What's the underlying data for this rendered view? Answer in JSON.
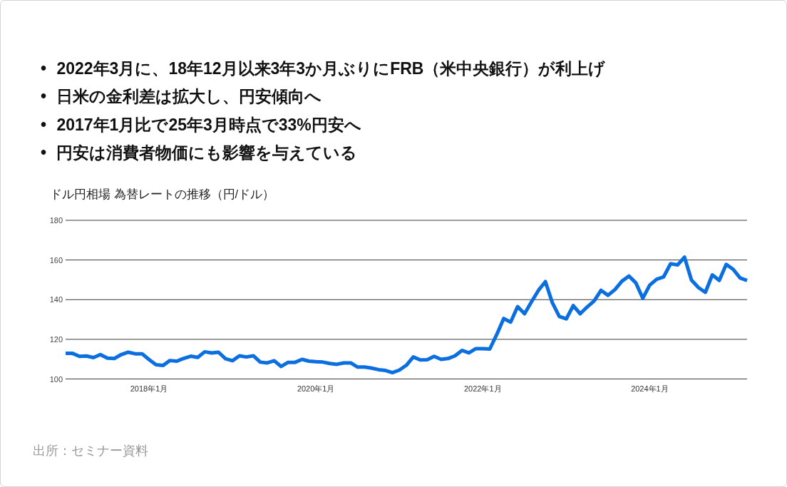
{
  "chart_data": {
    "type": "line",
    "title": "ドル円相場 為替レートの推移（円/ドル）",
    "annotations": [
      "• 2022年3月に、18年12月以来3年3か月ぶりにFRB（米中央銀行）が利上げ",
      "• 日米の金利差は拡大し、円安傾向へ",
      "• 2017年1月比で25年3月時点で33%円安へ",
      "• 円安は消費者物価にも影響を与えている",
      "出所：セミナー資料"
    ],
    "x": [
      "2017-01",
      "2017-02",
      "2017-03",
      "2017-04",
      "2017-05",
      "2017-06",
      "2017-07",
      "2017-08",
      "2017-09",
      "2017-10",
      "2017-11",
      "2017-12",
      "2018-01",
      "2018-02",
      "2018-03",
      "2018-04",
      "2018-05",
      "2018-06",
      "2018-07",
      "2018-08",
      "2018-09",
      "2018-10",
      "2018-11",
      "2018-12",
      "2019-01",
      "2019-02",
      "2019-03",
      "2019-04",
      "2019-05",
      "2019-06",
      "2019-07",
      "2019-08",
      "2019-09",
      "2019-10",
      "2019-11",
      "2019-12",
      "2020-01",
      "2020-02",
      "2020-03",
      "2020-04",
      "2020-05",
      "2020-06",
      "2020-07",
      "2020-08",
      "2020-09",
      "2020-10",
      "2020-11",
      "2020-12",
      "2021-01",
      "2021-02",
      "2021-03",
      "2021-04",
      "2021-05",
      "2021-06",
      "2021-07",
      "2021-08",
      "2021-09",
      "2021-10",
      "2021-11",
      "2021-12",
      "2022-01",
      "2022-02",
      "2022-03",
      "2022-04",
      "2022-05",
      "2022-06",
      "2022-07",
      "2022-08",
      "2022-09",
      "2022-10",
      "2022-11",
      "2022-12",
      "2023-01",
      "2023-02",
      "2023-03",
      "2023-04",
      "2023-05",
      "2023-06",
      "2023-07",
      "2023-08",
      "2023-09",
      "2023-10",
      "2023-11",
      "2023-12",
      "2024-01",
      "2024-02",
      "2024-03",
      "2024-04",
      "2024-05",
      "2024-06",
      "2024-07",
      "2024-08",
      "2024-09",
      "2024-10",
      "2024-11",
      "2024-12",
      "2025-01",
      "2025-02",
      "2025-03"
    ],
    "series": [
      {
        "color": "#0b6fe0",
        "values": [
          112.9,
          112.9,
          111.4,
          111.6,
          110.8,
          112.3,
          110.5,
          110.3,
          112.3,
          113.5,
          112.7,
          112.7,
          109.8,
          107.2,
          106.8,
          109.3,
          109.0,
          110.4,
          111.5,
          110.9,
          113.7,
          113.1,
          113.5,
          110.2,
          109.2,
          111.7,
          111.1,
          111.7,
          108.5,
          108.1,
          109.2,
          106.3,
          108.4,
          108.4,
          109.9,
          109.0,
          108.7,
          108.5,
          107.8,
          107.4,
          108.1,
          108.1,
          106.0,
          106.0,
          105.5,
          104.7,
          104.3,
          103.2,
          104.5,
          106.9,
          111.1,
          109.6,
          109.7,
          111.4,
          109.9,
          110.3,
          111.7,
          114.4,
          113.2,
          115.3,
          115.3,
          115.1,
          122.4,
          130.5,
          128.7,
          136.5,
          132.9,
          138.9,
          144.7,
          149.1,
          138.4,
          131.5,
          130.3,
          137.0,
          132.9,
          136.3,
          139.3,
          144.7,
          142.2,
          145.1,
          149.3,
          151.9,
          148.5,
          140.7,
          147.3,
          150.3,
          151.5,
          158.1,
          157.5,
          161.4,
          149.9,
          146.1,
          143.7,
          152.5,
          149.7,
          157.8,
          155.3,
          150.9,
          149.7
        ]
      }
    ],
    "xlim": [
      "2017-01",
      "2025-03"
    ],
    "xticks": [
      {
        "value": "2018-01",
        "label": "2018年1月"
      },
      {
        "value": "2020-01",
        "label": "2020年1月"
      },
      {
        "value": "2022-01",
        "label": "2022年1月"
      },
      {
        "value": "2024-01",
        "label": "2024年1月"
      }
    ],
    "ylim": [
      100,
      180
    ],
    "yticks": [
      100,
      120,
      140,
      160,
      180
    ],
    "grid": "y",
    "marker": "none",
    "line_style": "solid"
  }
}
